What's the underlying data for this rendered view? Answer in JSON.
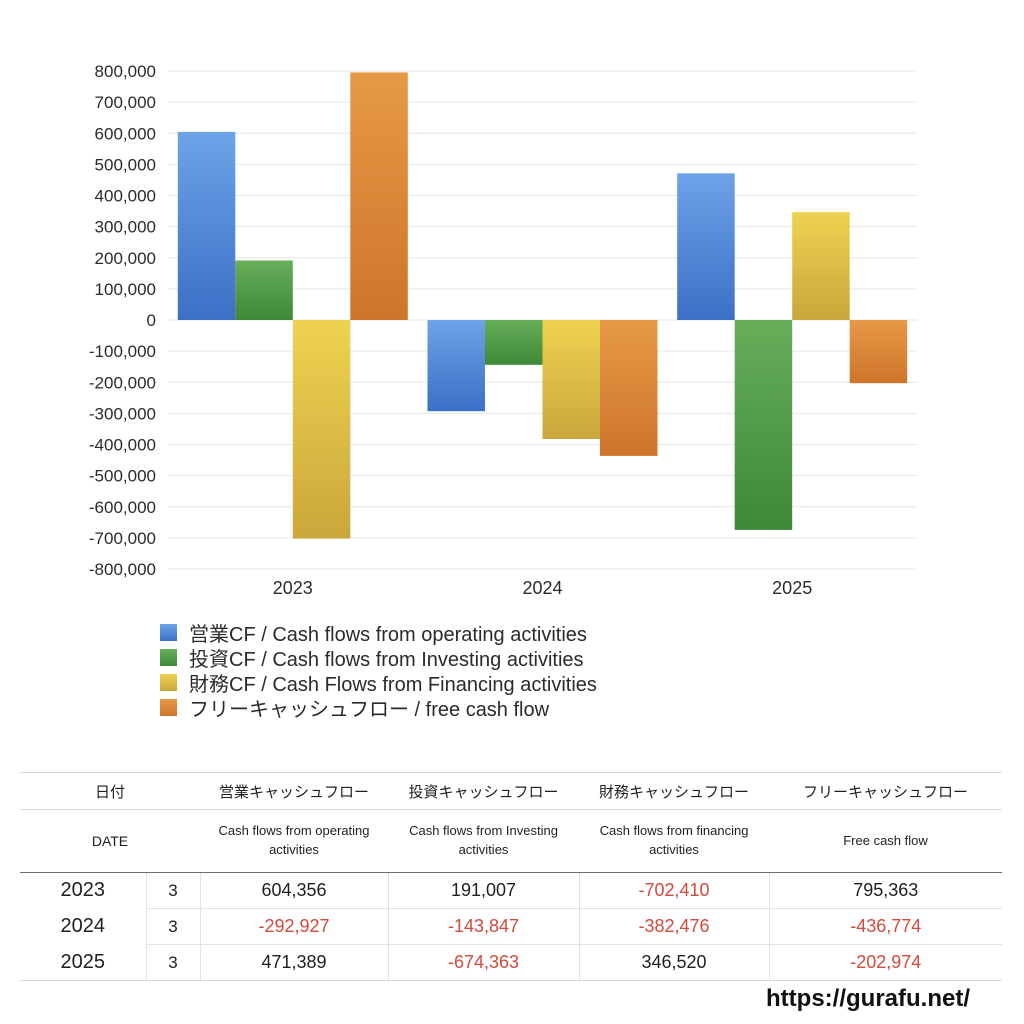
{
  "chart_data": {
    "type": "bar",
    "title": "",
    "xlabel": "",
    "ylabel": "",
    "categories": [
      "2023",
      "2024",
      "2025"
    ],
    "series": [
      {
        "name": "営業CF / Cash flows from operating activities",
        "values": [
          604356,
          -292927,
          471389
        ],
        "color_top": "#6EA2E8",
        "color_bottom": "#3B70C6"
      },
      {
        "name": "投資CF / Cash flows from Investing activities",
        "values": [
          191007,
          -143847,
          -674363
        ],
        "color_top": "#66AE5A",
        "color_bottom": "#3E8837"
      },
      {
        "name": "財務CF / Cash Flows from Financing activities",
        "values": [
          -702410,
          -382476,
          346520
        ],
        "color_top": "#EFD251",
        "color_bottom": "#C9A73C"
      },
      {
        "name": "フリーキャッシュフロー / free cash flow",
        "values": [
          795363,
          -436774,
          -202974
        ],
        "color_top": "#E69946",
        "color_bottom": "#CE752B"
      }
    ],
    "ylim": [
      -800000,
      800000
    ],
    "ytick_step": 100000,
    "grid": true,
    "gridline_color": "#E6E6E6",
    "axis_text_color": "#2B2B2B",
    "legend_position": "bottom-left"
  },
  "table": {
    "headers_ja": [
      "日付",
      "営業キャッシュフロー",
      "投資キャッシュフロー",
      "財務キャッシュフロー",
      "フリーキャッシュフロー"
    ],
    "headers_en": [
      "DATE",
      "Cash flows from operating activities",
      "Cash flows from Investing activities",
      "Cash flows from financing activities",
      "Free cash flow"
    ],
    "rows": [
      {
        "year": "2023",
        "month": "3",
        "values": [
          "604,356",
          "191,007",
          "-702,410",
          "795,363"
        ]
      },
      {
        "year": "2024",
        "month": "3",
        "values": [
          "-292,927",
          "-143,847",
          "-382,476",
          "-436,774"
        ]
      },
      {
        "year": "2025",
        "month": "3",
        "values": [
          "471,389",
          "-674,363",
          "346,520",
          "-202,974"
        ]
      }
    ],
    "negative_color": "#D5493D"
  },
  "footer": {
    "url": "https://gurafu.net/"
  }
}
